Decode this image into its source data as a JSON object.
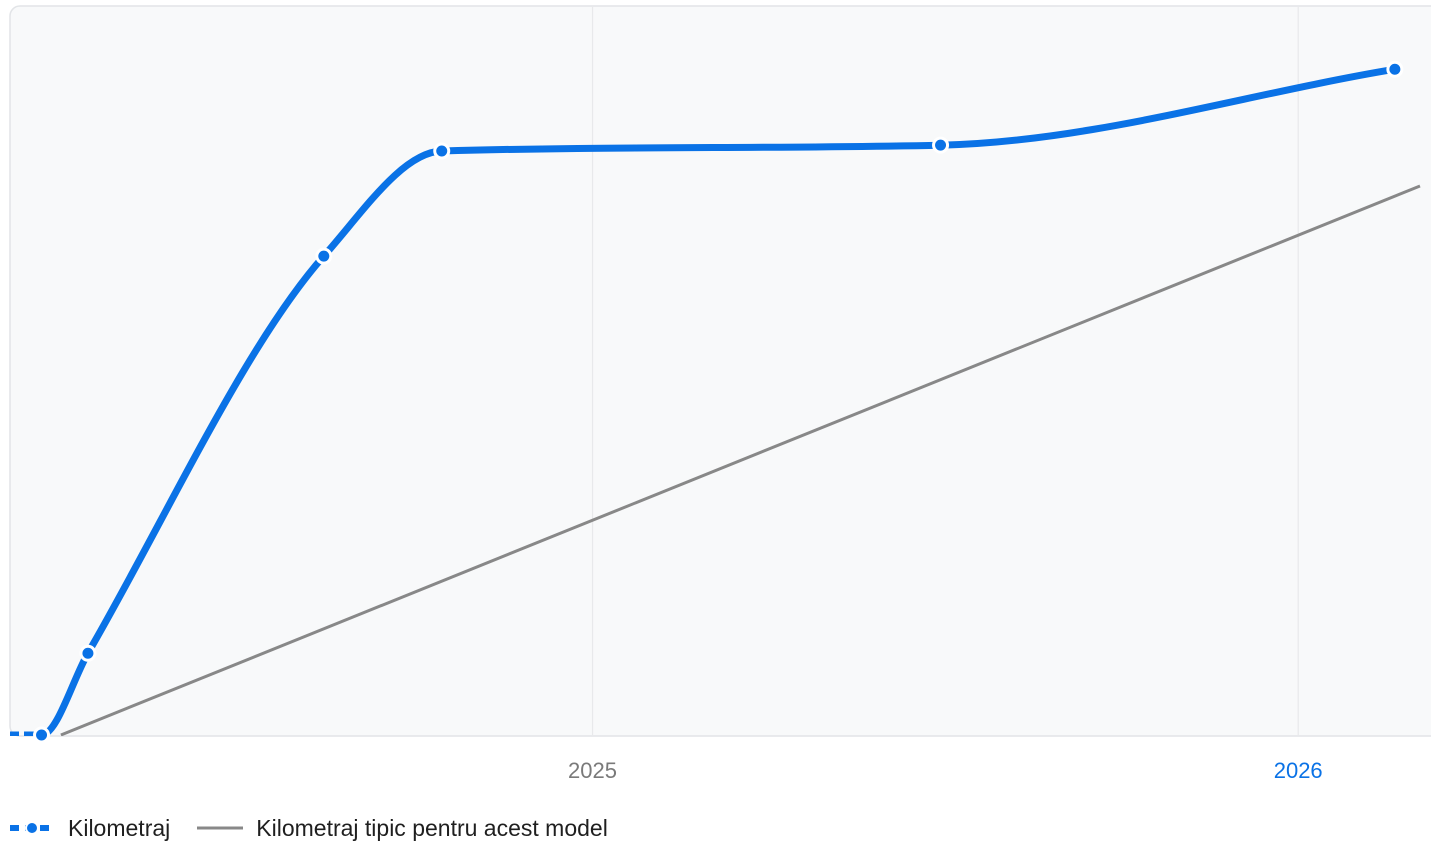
{
  "chart_data": {
    "type": "line",
    "x_axis": {
      "type": "date",
      "ticks": [
        {
          "label": "2025",
          "date": "2025-01-01",
          "highlight": false
        },
        {
          "label": "2026",
          "date": "2026-01-01",
          "highlight": true
        }
      ],
      "range": [
        "2024-03-15",
        "2026-03-05"
      ]
    },
    "y_axis": {
      "labels_visible": false,
      "range": [
        0,
        100
      ]
    },
    "grid": {
      "vertical": true,
      "horizontal": false
    },
    "legend_position": "bottom-left",
    "series": [
      {
        "name": "Kilometraj",
        "color": "#0a72e6",
        "style": "smooth-line-with-markers",
        "points": [
          {
            "x": "2024-03-15",
            "y": 0
          },
          {
            "x": "2024-03-22",
            "y": 0
          },
          {
            "x": "2024-04-15",
            "y": 14
          },
          {
            "x": "2024-08-15",
            "y": 82
          },
          {
            "x": "2024-10-15",
            "y": 100
          },
          {
            "x": "2025-06-30",
            "y": 101
          },
          {
            "x": "2026-02-20",
            "y": 114
          }
        ]
      },
      {
        "name": "Kilometraj tipic pentru acest model",
        "color": "#888888",
        "style": "line",
        "points": [
          {
            "x": "2024-04-01",
            "y": 0
          },
          {
            "x": "2026-03-05",
            "y": 94
          }
        ]
      }
    ]
  },
  "colors": {
    "plot_background": "#f8f9fa",
    "plot_border": "#e2e4e7",
    "gridline": "#e8e9eb",
    "tick_label": "#7a7a7a",
    "tick_label_highlight": "#0a72e6",
    "legend_text": "#1f1f1f"
  }
}
